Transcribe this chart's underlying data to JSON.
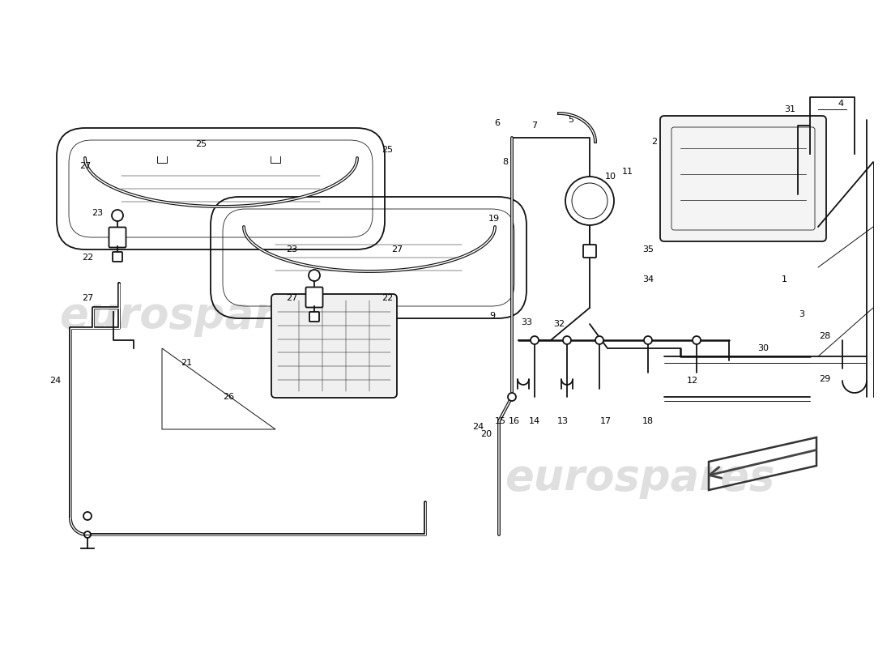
{
  "bg_color": "#ffffff",
  "line_color": "#111111",
  "lw": 1.3,
  "tlw": 0.7,
  "wm_color": "#dedede",
  "label_fs": 8.0
}
